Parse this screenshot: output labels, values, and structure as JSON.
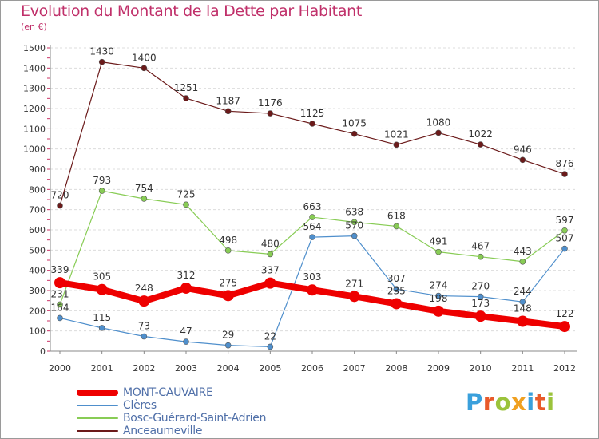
{
  "title": "Evolution du Montant de la Dette par Habitant",
  "unit": "(en €)",
  "brand": {
    "text": "Proxiti",
    "letters": [
      {
        "char": "P",
        "color": "#3aa0dc"
      },
      {
        "char": "r",
        "color": "#e85a2a"
      },
      {
        "char": "o",
        "color": "#9bc33b"
      },
      {
        "char": "x",
        "color": "#f0a020"
      },
      {
        "char": "i",
        "color": "#3aa0dc"
      },
      {
        "char": "t",
        "color": "#e85a2a"
      },
      {
        "char": "i",
        "color": "#9bc33b"
      }
    ]
  },
  "chart_data": {
    "type": "line",
    "title": "Evolution du Montant de la Dette par Habitant",
    "ylabel": "(en €)",
    "xlabel": "",
    "x": [
      "2000",
      "2001",
      "2002",
      "2003",
      "2004",
      "2005",
      "2006",
      "2007",
      "2008",
      "2009",
      "2010",
      "2011",
      "2012"
    ],
    "ylim": [
      0,
      1500
    ],
    "yticks": [
      0,
      100,
      200,
      300,
      400,
      500,
      600,
      700,
      800,
      900,
      1000,
      1100,
      1200,
      1300,
      1400,
      1500
    ],
    "grid": "horizontal",
    "legend": "bottom-left",
    "series": [
      {
        "name": "MONT-CAUVAIRE",
        "color": "#ee0000",
        "values": [
          339,
          305,
          248,
          312,
          275,
          337,
          303,
          271,
          235,
          198,
          173,
          148,
          122
        ]
      },
      {
        "name": "Clères",
        "color": "#4f8fcc",
        "values": [
          164,
          115,
          73,
          47,
          29,
          22,
          564,
          570,
          307,
          274,
          270,
          244,
          507
        ]
      },
      {
        "name": "Bosc-Guérard-Saint-Adrien",
        "color": "#88cc55",
        "values": [
          231,
          793,
          754,
          725,
          498,
          480,
          663,
          638,
          618,
          491,
          467,
          443,
          597
        ]
      },
      {
        "name": "Anceaumeville",
        "color": "#6b1a1a",
        "values": [
          720,
          1430,
          1400,
          1251,
          1187,
          1176,
          1125,
          1075,
          1021,
          1080,
          1022,
          946,
          876
        ]
      }
    ]
  }
}
